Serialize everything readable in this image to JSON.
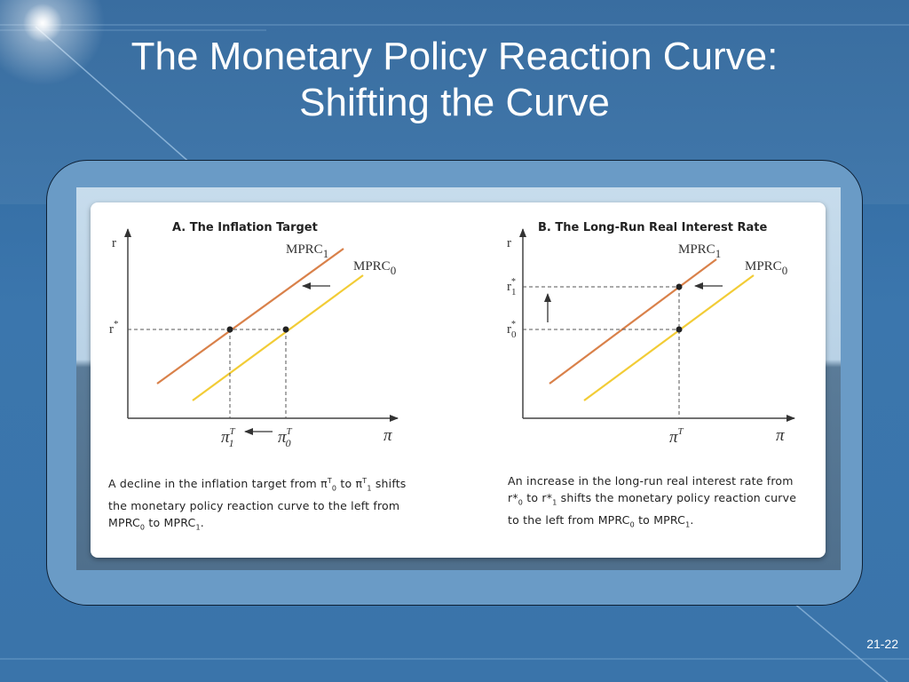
{
  "slide": {
    "title_line1": "The Monetary Policy Reaction Curve:",
    "title_line2": "Shifting the Curve",
    "page_number": "21-22"
  },
  "colors": {
    "background": "#3a74aa",
    "mprc1": "#d9814a",
    "mprc0": "#f2cc36",
    "axis": "#444444"
  },
  "panel_a": {
    "title": "A. The Inflation Target",
    "y_axis": "r",
    "x_axis": "π",
    "y_tick": "r",
    "y_tick_sup": "*",
    "curve1": {
      "base": "MPRC",
      "sub": "1"
    },
    "curve0": {
      "base": "MPRC",
      "sub": "0"
    },
    "x_tick1": {
      "base": "π",
      "sup": "T",
      "sub": "1"
    },
    "x_tick0": {
      "base": "π",
      "sup": "T",
      "sub": "0"
    },
    "caption": {
      "p1": "A decline in the inflation target from π",
      "s1": "T",
      "b1": "0",
      "p2": " to π",
      "s2": "T",
      "b2": "1",
      "p3": " shifts the monetary policy reaction curve to the left from MPRC",
      "b3": "0",
      "p4": " to MPRC",
      "b4": "1",
      "p5": "."
    }
  },
  "panel_b": {
    "title": "B. The Long-Run Real Interest Rate",
    "y_axis": "r",
    "x_axis": "π",
    "y_tick1": {
      "base": "r",
      "sup": "*",
      "sub": "1"
    },
    "y_tick0": {
      "base": "r",
      "sup": "*",
      "sub": "0"
    },
    "x_tick": {
      "base": "π",
      "sup": "T"
    },
    "curve1": {
      "base": "MPRC",
      "sub": "1"
    },
    "curve0": {
      "base": "MPRC",
      "sub": "0"
    },
    "caption": {
      "p1": "An increase in the long-run real interest rate from r*",
      "b1": "0",
      "p2": " to r*",
      "b2": "1",
      "p3": " shifts the monetary policy reaction curve to the left from MPRC",
      "b3": "0",
      "p4": " to MPRC",
      "b4": "1",
      "p5": "."
    }
  }
}
